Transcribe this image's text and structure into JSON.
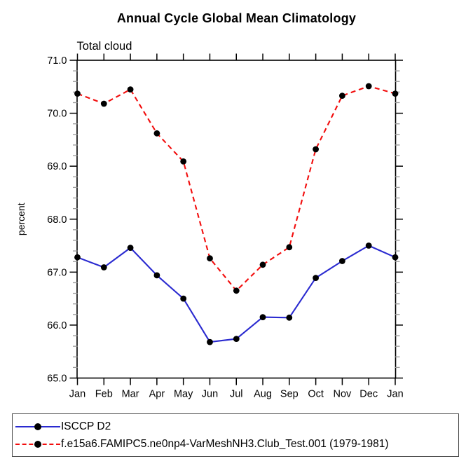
{
  "title": "Annual Cycle Global Mean Climatology",
  "chart_data": {
    "type": "line",
    "title": "Annual Cycle Global Mean Climatology",
    "subtitle": "Total cloud",
    "xlabel": "",
    "ylabel": "percent",
    "categories": [
      "Jan",
      "Feb",
      "Mar",
      "Apr",
      "May",
      "Jun",
      "Jul",
      "Aug",
      "Sep",
      "Oct",
      "Nov",
      "Dec",
      "Jan"
    ],
    "ylim": [
      65.0,
      71.0
    ],
    "ytick_major_step": 1.0,
    "ytick_minor_step": 0.2,
    "ytick_labels": [
      "65.0",
      "66.0",
      "67.0",
      "68.0",
      "69.0",
      "70.0",
      "71.0"
    ],
    "grid": false,
    "legend_position": "bottom",
    "colors": {
      "axis": "#000000",
      "minor_tick": "#999999",
      "marker": "#000000",
      "series1": "#2a2ad0",
      "series2": "#f20d0d"
    },
    "series": [
      {
        "name": "ISCCP D2",
        "color": "#2a2ad0",
        "line_style": "solid",
        "marker": "circle",
        "marker_color": "#000000",
        "values": [
          67.28,
          67.09,
          67.46,
          66.94,
          66.5,
          65.68,
          65.74,
          66.15,
          66.14,
          66.89,
          67.21,
          67.5,
          67.28
        ]
      },
      {
        "name": "f.e15a6.FAMIPC5.ne0np4-VarMeshNH3.Club_Test.001 (1979-1981)",
        "color": "#f20d0d",
        "line_style": "dashed",
        "marker": "circle",
        "marker_color": "#000000",
        "values": [
          70.37,
          70.18,
          70.45,
          69.62,
          69.09,
          67.26,
          66.65,
          67.14,
          67.47,
          69.32,
          70.33,
          70.51,
          70.37
        ]
      }
    ]
  }
}
